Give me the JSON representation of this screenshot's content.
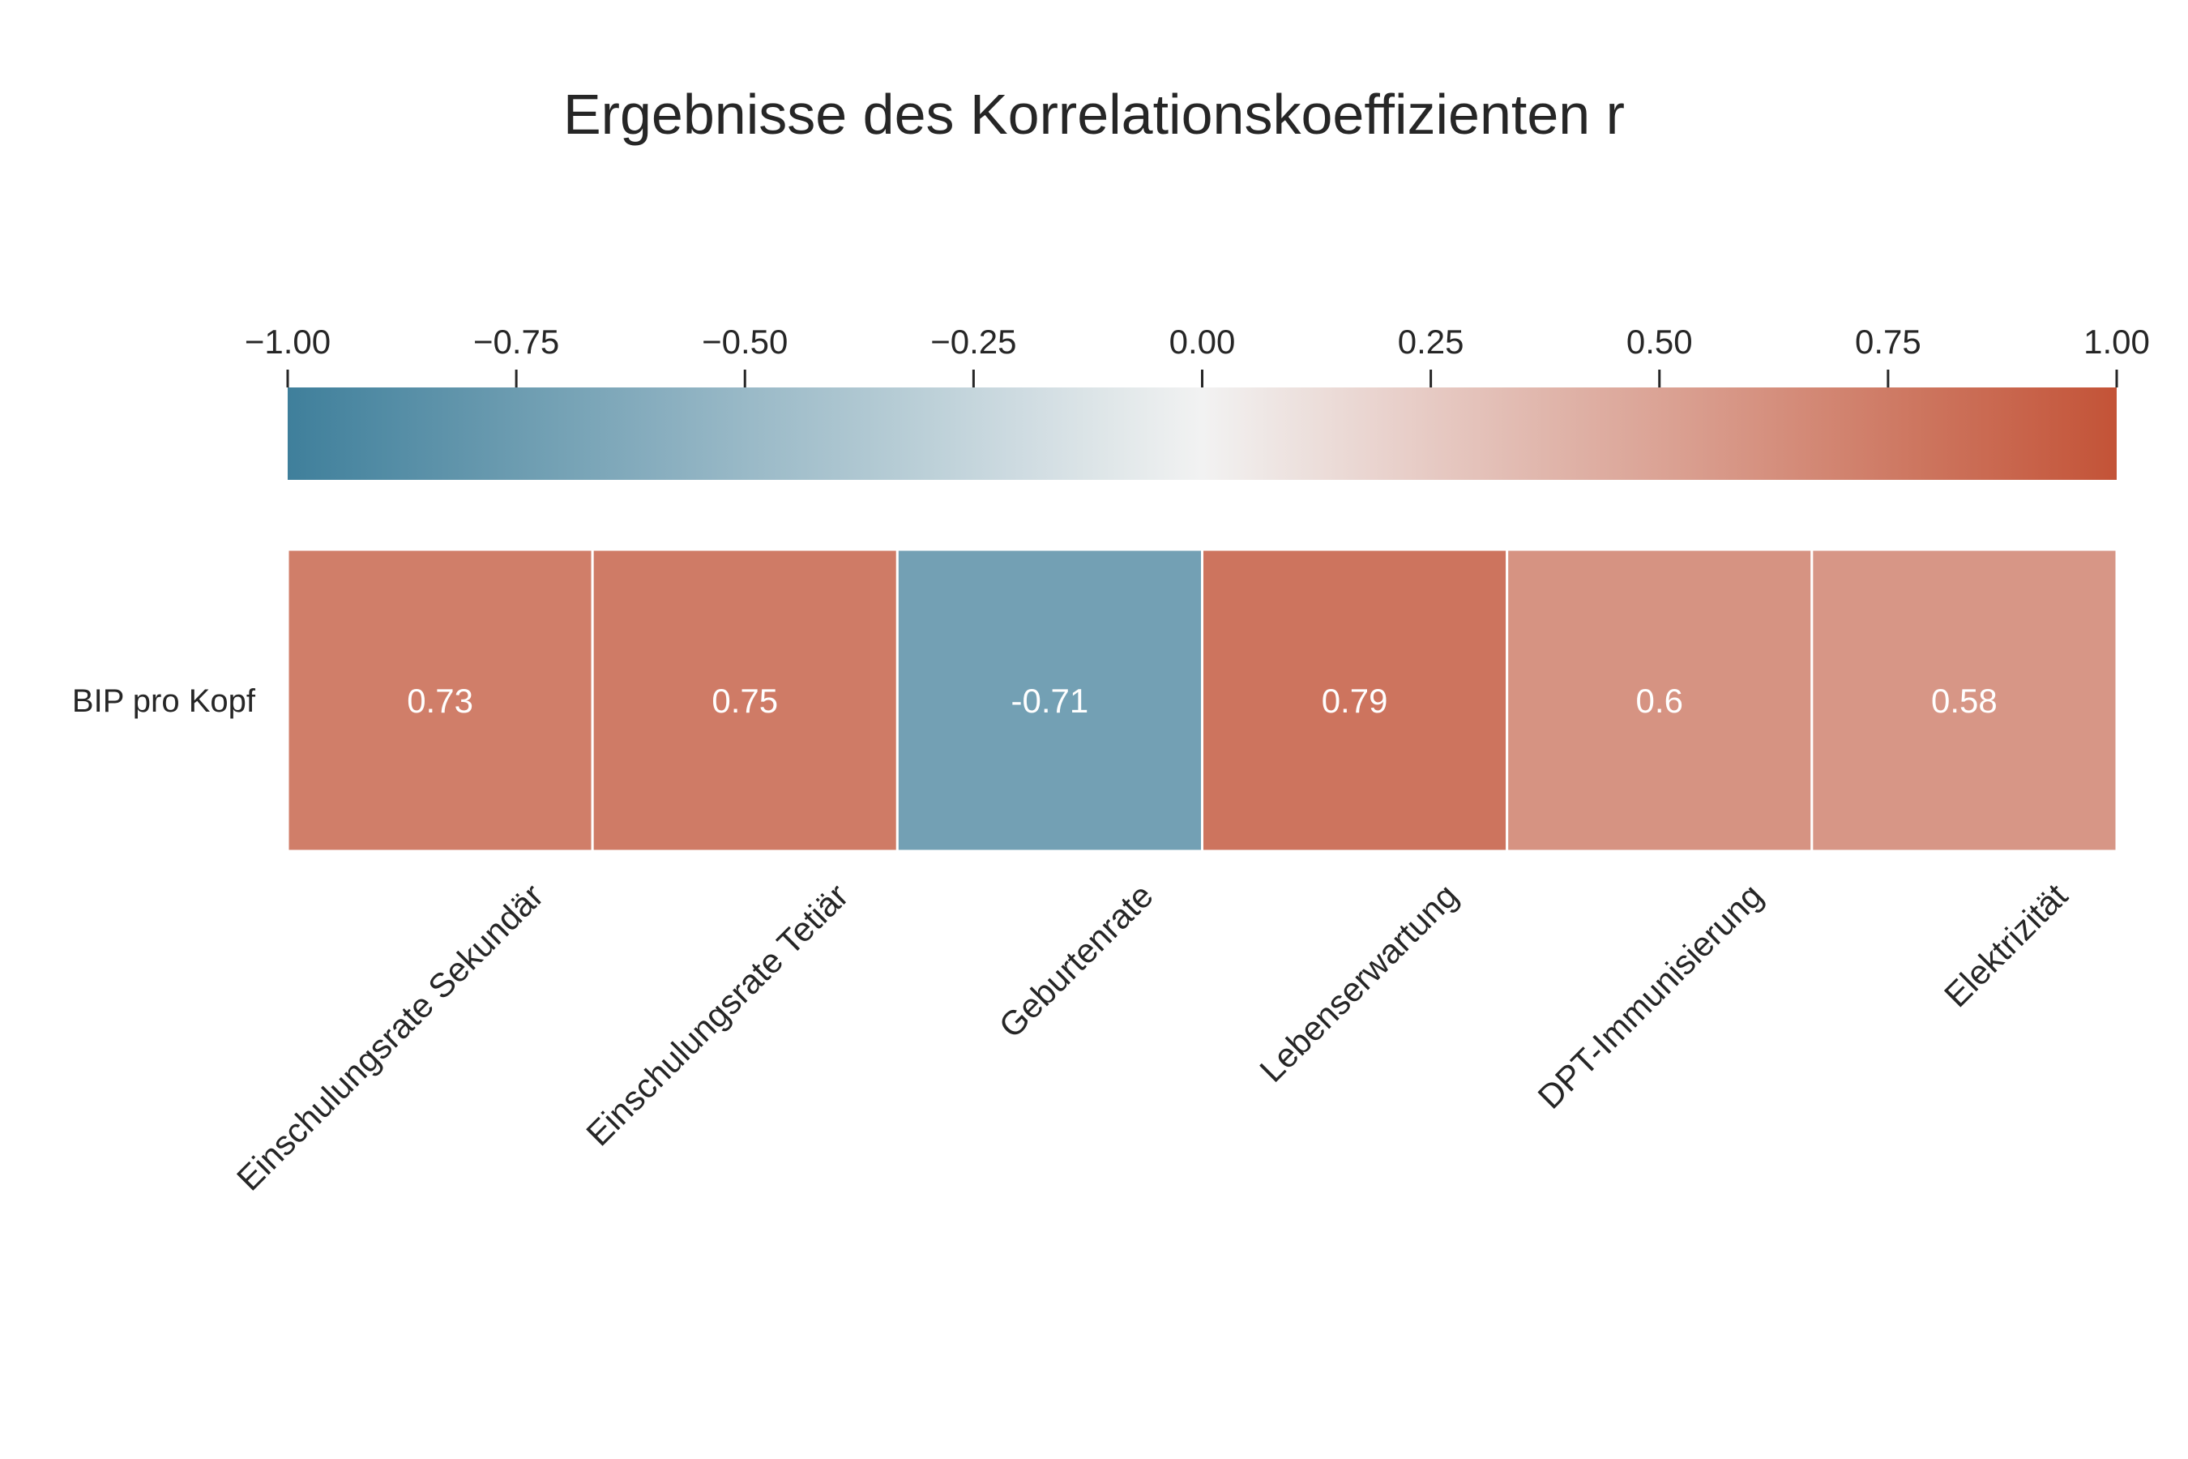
{
  "chart_data": {
    "type": "heatmap",
    "title": "Ergebnisse des Korrelationskoeffizienten r",
    "rows": [
      "BIP pro Kopf"
    ],
    "columns": [
      "Einschulungsrate Sekundär",
      "Einschulungsrate Tetiär",
      "Geburtenrate",
      "Lebenserwartung",
      "DPT-Immunisierung",
      "Elektrizität"
    ],
    "values": [
      [
        0.73,
        0.75,
        -0.71,
        0.79,
        0.6,
        0.58
      ]
    ],
    "value_labels": [
      [
        "0.73",
        "0.75",
        "-0.71",
        "0.79",
        "0.6",
        "0.58"
      ]
    ],
    "colorbar": {
      "range": [
        -1.0,
        1.0
      ],
      "ticks": [
        -1.0,
        -0.75,
        -0.5,
        -0.25,
        0.0,
        0.25,
        0.5,
        0.75,
        1.0
      ],
      "tick_labels": [
        "−1.00",
        "−0.75",
        "−0.50",
        "−0.25",
        "0.00",
        "0.25",
        "0.50",
        "0.75",
        "1.00"
      ],
      "orientation": "horizontal",
      "placement": "top"
    },
    "colors": {
      "negative": "#3f7f9b",
      "center": "#f2f2f2",
      "positive": "#c35337"
    }
  }
}
